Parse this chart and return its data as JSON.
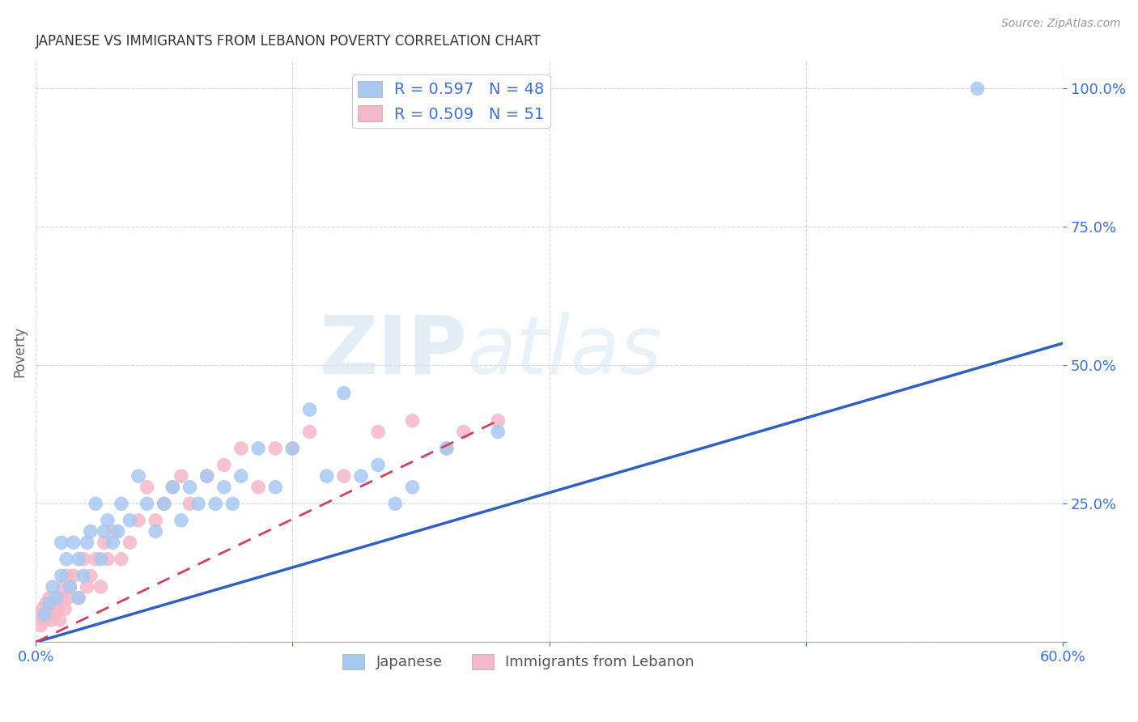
{
  "title": "JAPANESE VS IMMIGRANTS FROM LEBANON POVERTY CORRELATION CHART",
  "source": "Source: ZipAtlas.com",
  "ylabel": "Poverty",
  "xlim": [
    0.0,
    0.6
  ],
  "ylim": [
    0.0,
    1.05
  ],
  "background_color": "#ffffff",
  "grid_color": "#d0d0d0",
  "japanese_color": "#a8c8f0",
  "lebanon_color": "#f5b8c8",
  "japanese_line_color": "#3060c0",
  "lebanon_line_color": "#d04060",
  "legend_R1": "0.597",
  "legend_N1": "48",
  "legend_R2": "0.509",
  "legend_N2": "51",
  "watermark_zip": "ZIP",
  "watermark_atlas": "atlas",
  "japanese_points_x": [
    0.005,
    0.008,
    0.01,
    0.012,
    0.015,
    0.015,
    0.018,
    0.02,
    0.022,
    0.025,
    0.025,
    0.028,
    0.03,
    0.032,
    0.035,
    0.038,
    0.04,
    0.042,
    0.045,
    0.048,
    0.05,
    0.055,
    0.06,
    0.065,
    0.07,
    0.075,
    0.08,
    0.085,
    0.09,
    0.095,
    0.1,
    0.105,
    0.11,
    0.115,
    0.12,
    0.13,
    0.14,
    0.15,
    0.16,
    0.17,
    0.18,
    0.19,
    0.2,
    0.21,
    0.22,
    0.24,
    0.27,
    0.55
  ],
  "japanese_points_y": [
    0.05,
    0.07,
    0.1,
    0.08,
    0.12,
    0.18,
    0.15,
    0.1,
    0.18,
    0.08,
    0.15,
    0.12,
    0.18,
    0.2,
    0.25,
    0.15,
    0.2,
    0.22,
    0.18,
    0.2,
    0.25,
    0.22,
    0.3,
    0.25,
    0.2,
    0.25,
    0.28,
    0.22,
    0.28,
    0.25,
    0.3,
    0.25,
    0.28,
    0.25,
    0.3,
    0.35,
    0.28,
    0.35,
    0.42,
    0.3,
    0.45,
    0.3,
    0.32,
    0.25,
    0.28,
    0.35,
    0.38,
    1.0
  ],
  "lebanon_points_x": [
    0.002,
    0.003,
    0.004,
    0.005,
    0.006,
    0.007,
    0.008,
    0.009,
    0.01,
    0.011,
    0.012,
    0.013,
    0.014,
    0.015,
    0.016,
    0.017,
    0.018,
    0.019,
    0.02,
    0.022,
    0.025,
    0.028,
    0.03,
    0.032,
    0.035,
    0.038,
    0.04,
    0.042,
    0.045,
    0.05,
    0.055,
    0.06,
    0.065,
    0.07,
    0.075,
    0.08,
    0.085,
    0.09,
    0.1,
    0.11,
    0.12,
    0.13,
    0.14,
    0.15,
    0.16,
    0.18,
    0.2,
    0.22,
    0.24,
    0.25,
    0.27
  ],
  "lebanon_points_y": [
    0.05,
    0.03,
    0.06,
    0.04,
    0.07,
    0.05,
    0.08,
    0.04,
    0.06,
    0.05,
    0.08,
    0.06,
    0.04,
    0.08,
    0.1,
    0.06,
    0.12,
    0.08,
    0.1,
    0.12,
    0.08,
    0.15,
    0.1,
    0.12,
    0.15,
    0.1,
    0.18,
    0.15,
    0.2,
    0.15,
    0.18,
    0.22,
    0.28,
    0.22,
    0.25,
    0.28,
    0.3,
    0.25,
    0.3,
    0.32,
    0.35,
    0.28,
    0.35,
    0.35,
    0.38,
    0.3,
    0.38,
    0.4,
    0.35,
    0.38,
    0.4
  ],
  "jp_line_x": [
    0.0,
    0.6
  ],
  "jp_line_y": [
    0.0,
    0.54
  ],
  "lb_line_x": [
    0.0,
    0.27
  ],
  "lb_line_y": [
    0.0,
    0.4
  ]
}
